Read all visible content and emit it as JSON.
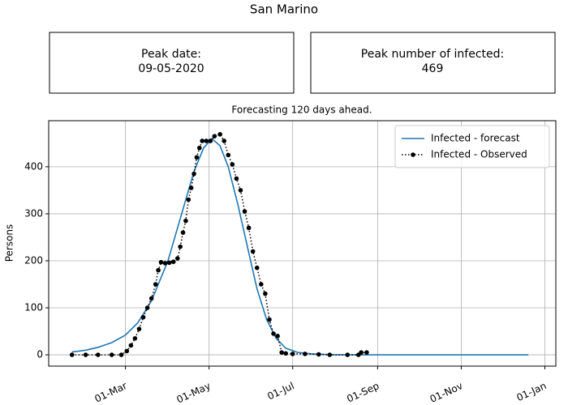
{
  "panels": [
    {
      "label": "Peak date:",
      "value": "09-05-2020"
    },
    {
      "label": "Peak number of infected:",
      "value": 469
    }
  ],
  "chart_data": {
    "type": "line",
    "title": "San Marino",
    "subtitle": "Forecasting 120 days ahead.",
    "y_label": "Persons",
    "xlim": [
      "05-Jan",
      "09-Jan"
    ],
    "xticks": [
      "01-Mar",
      "01-May",
      "01-Jul",
      "01-Sep",
      "01-Nov",
      "01-Jan"
    ],
    "ylim": [
      -24,
      498
    ],
    "yticks": [
      0,
      100,
      200,
      300,
      400
    ],
    "grid": true,
    "legend": "upper right",
    "series": [
      {
        "name": "Infected - forecast",
        "color": "#1f77b4",
        "style": "solid",
        "x": [
          "22-Jan",
          "01-Feb",
          "10-Feb",
          "20-Feb",
          "01-Mar",
          "10-Mar",
          "20-Mar",
          "01-Apr",
          "10-Apr",
          "20-Apr",
          "27-Apr",
          "03-May",
          "09-May",
          "15-May",
          "22-May",
          "29-May",
          "05-Jun",
          "12-Jun",
          "19-Jun",
          "26-Jun",
          "05-Jul",
          "15-Jul",
          "01-Aug",
          "01-Oct",
          "01-Dec",
          "20-Dec"
        ],
        "values": [
          6,
          10,
          16,
          26,
          42,
          68,
          115,
          200,
          290,
          390,
          440,
          460,
          445,
          400,
          320,
          230,
          140,
          75,
          35,
          14,
          5,
          2,
          0,
          0,
          0,
          0
        ]
      },
      {
        "name": "Infected - Observed",
        "color": "#000000",
        "style": "dotted",
        "x": [
          "22-Jan",
          "01-Feb",
          "10-Feb",
          "20-Feb",
          "27-Feb",
          "02-Mar",
          "05-Mar",
          "08-Mar",
          "11-Mar",
          "14-Mar",
          "17-Mar",
          "20-Mar",
          "23-Mar",
          "25-Mar",
          "27-Mar",
          "30-Mar",
          "02-Apr",
          "05-Apr",
          "08-Apr",
          "10-Apr",
          "12-Apr",
          "14-Apr",
          "16-Apr",
          "18-Apr",
          "20-Apr",
          "22-Apr",
          "24-Apr",
          "26-Apr",
          "29-Apr",
          "02-May",
          "05-May",
          "09-May",
          "12-May",
          "15-May",
          "18-May",
          "21-May",
          "24-May",
          "27-May",
          "30-May",
          "02-Jun",
          "05-Jun",
          "08-Jun",
          "11-Jun",
          "14-Jun",
          "17-Jun",
          "20-Jun",
          "23-Jun",
          "26-Jun",
          "01-Jul",
          "10-Jul",
          "20-Jul",
          "28-Jul",
          "10-Aug",
          "18-Aug",
          "20-Aug",
          "24-Aug"
        ],
        "values": [
          0,
          0,
          0,
          0,
          0,
          8,
          20,
          35,
          55,
          80,
          100,
          120,
          150,
          180,
          197,
          195,
          196,
          198,
          205,
          230,
          260,
          285,
          330,
          355,
          385,
          420,
          440,
          455,
          455,
          455,
          465,
          469,
          455,
          425,
          405,
          375,
          350,
          305,
          270,
          220,
          185,
          150,
          130,
          75,
          45,
          40,
          5,
          3,
          2,
          2,
          1,
          0,
          0,
          0,
          5,
          5
        ]
      }
    ]
  }
}
